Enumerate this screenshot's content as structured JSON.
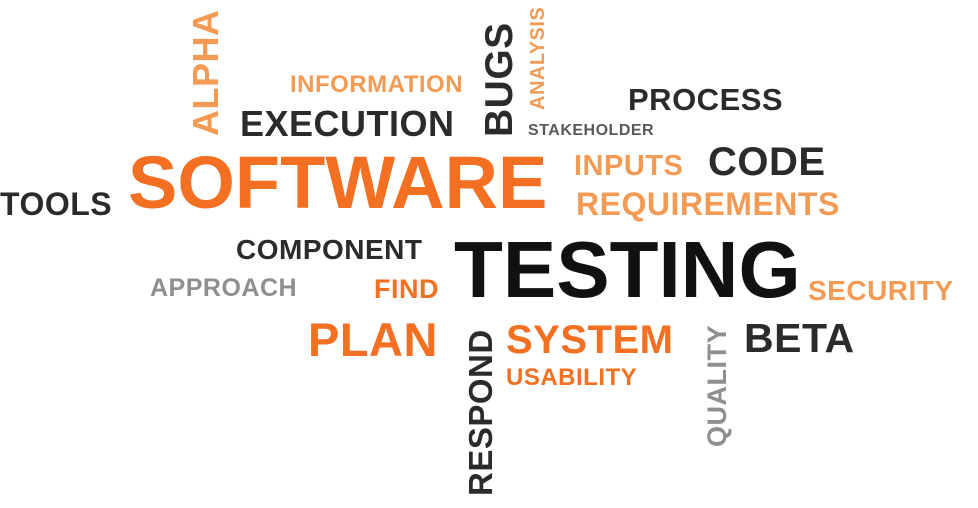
{
  "words": {
    "alpha": "ALPHA",
    "information": "INFORMATION",
    "execution": "EXECUTION",
    "bugs": "BUGS",
    "analysis": "ANALYSIS",
    "process": "PROCESS",
    "stakeholder": "STAKEHOLDER",
    "software": "SOFTWARE",
    "inputs": "INPUTS",
    "code": "CODE",
    "tools": "TOOLS",
    "requirements": "REQUIREMENTS",
    "component": "COMPONENT",
    "testing": "TESTING",
    "approach": "APPROACH",
    "find": "FIND",
    "security": "SECURITY",
    "plan": "PLAN",
    "respond": "RESPOND",
    "system": "SYSTEM",
    "quality": "QUALITY",
    "beta": "BETA",
    "usability": "USABILITY"
  },
  "colors": {
    "orange": "#f36f21",
    "light_orange": "#f39b55",
    "dark": "#2b2b2b",
    "black": "#111111",
    "gray": "#8f8f8f"
  }
}
